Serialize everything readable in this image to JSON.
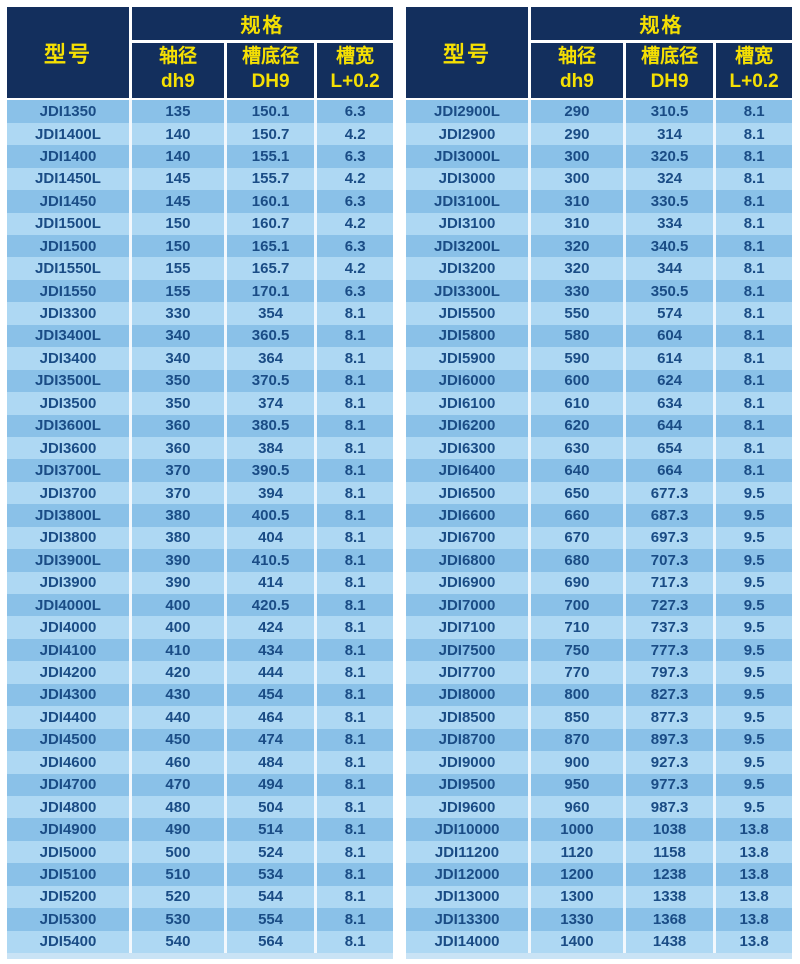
{
  "colors": {
    "header_bg": "#132f5d",
    "header_text": "#f5e003",
    "row_odd": "#8ac1e8",
    "row_even": "#aed8f3",
    "cell_text": "#1a4c85",
    "separator": "#ffffff",
    "footer_strip": "#c9e3f5"
  },
  "tables": [
    {
      "header": {
        "model_label": "型号",
        "spec_label": "规格",
        "columns": [
          {
            "cn": "轴径",
            "code": "dh9"
          },
          {
            "cn": "槽底径",
            "code": "DH9"
          },
          {
            "cn": "槽宽",
            "code": "L+0.2"
          }
        ]
      },
      "rows": [
        [
          "JDI1350",
          "135",
          "150.1",
          "6.3"
        ],
        [
          "JDI1400L",
          "140",
          "150.7",
          "4.2"
        ],
        [
          "JDI1400",
          "140",
          "155.1",
          "6.3"
        ],
        [
          "JDI1450L",
          "145",
          "155.7",
          "4.2"
        ],
        [
          "JDI1450",
          "145",
          "160.1",
          "6.3"
        ],
        [
          "JDI1500L",
          "150",
          "160.7",
          "4.2"
        ],
        [
          "JDI1500",
          "150",
          "165.1",
          "6.3"
        ],
        [
          "JDI1550L",
          "155",
          "165.7",
          "4.2"
        ],
        [
          "JDI1550",
          "155",
          "170.1",
          "6.3"
        ],
        [
          "JDI3300",
          "330",
          "354",
          "8.1"
        ],
        [
          "JDI3400L",
          "340",
          "360.5",
          "8.1"
        ],
        [
          "JDI3400",
          "340",
          "364",
          "8.1"
        ],
        [
          "JDI3500L",
          "350",
          "370.5",
          "8.1"
        ],
        [
          "JDI3500",
          "350",
          "374",
          "8.1"
        ],
        [
          "JDI3600L",
          "360",
          "380.5",
          "8.1"
        ],
        [
          "JDI3600",
          "360",
          "384",
          "8.1"
        ],
        [
          "JDI3700L",
          "370",
          "390.5",
          "8.1"
        ],
        [
          "JDI3700",
          "370",
          "394",
          "8.1"
        ],
        [
          "JDI3800L",
          "380",
          "400.5",
          "8.1"
        ],
        [
          "JDI3800",
          "380",
          "404",
          "8.1"
        ],
        [
          "JDI3900L",
          "390",
          "410.5",
          "8.1"
        ],
        [
          "JDI3900",
          "390",
          "414",
          "8.1"
        ],
        [
          "JDI4000L",
          "400",
          "420.5",
          "8.1"
        ],
        [
          "JDI4000",
          "400",
          "424",
          "8.1"
        ],
        [
          "JDI4100",
          "410",
          "434",
          "8.1"
        ],
        [
          "JDI4200",
          "420",
          "444",
          "8.1"
        ],
        [
          "JDI4300",
          "430",
          "454",
          "8.1"
        ],
        [
          "JDI4400",
          "440",
          "464",
          "8.1"
        ],
        [
          "JDI4500",
          "450",
          "474",
          "8.1"
        ],
        [
          "JDI4600",
          "460",
          "484",
          "8.1"
        ],
        [
          "JDI4700",
          "470",
          "494",
          "8.1"
        ],
        [
          "JDI4800",
          "480",
          "504",
          "8.1"
        ],
        [
          "JDI4900",
          "490",
          "514",
          "8.1"
        ],
        [
          "JDI5000",
          "500",
          "524",
          "8.1"
        ],
        [
          "JDI5100",
          "510",
          "534",
          "8.1"
        ],
        [
          "JDI5200",
          "520",
          "544",
          "8.1"
        ],
        [
          "JDI5300",
          "530",
          "554",
          "8.1"
        ],
        [
          "JDI5400",
          "540",
          "564",
          "8.1"
        ]
      ]
    },
    {
      "header": {
        "model_label": "型号",
        "spec_label": "规格",
        "columns": [
          {
            "cn": "轴径",
            "code": "dh9"
          },
          {
            "cn": "槽底径",
            "code": "DH9"
          },
          {
            "cn": "槽宽",
            "code": "L+0.2"
          }
        ]
      },
      "rows": [
        [
          "JDI2900L",
          "290",
          "310.5",
          "8.1"
        ],
        [
          "JDI2900",
          "290",
          "314",
          "8.1"
        ],
        [
          "JDI3000L",
          "300",
          "320.5",
          "8.1"
        ],
        [
          "JDI3000",
          "300",
          "324",
          "8.1"
        ],
        [
          "JDI3100L",
          "310",
          "330.5",
          "8.1"
        ],
        [
          "JDI3100",
          "310",
          "334",
          "8.1"
        ],
        [
          "JDI3200L",
          "320",
          "340.5",
          "8.1"
        ],
        [
          "JDI3200",
          "320",
          "344",
          "8.1"
        ],
        [
          "JDI3300L",
          "330",
          "350.5",
          "8.1"
        ],
        [
          "JDI5500",
          "550",
          "574",
          "8.1"
        ],
        [
          "JDI5800",
          "580",
          "604",
          "8.1"
        ],
        [
          "JDI5900",
          "590",
          "614",
          "8.1"
        ],
        [
          "JDI6000",
          "600",
          "624",
          "8.1"
        ],
        [
          "JDI6100",
          "610",
          "634",
          "8.1"
        ],
        [
          "JDI6200",
          "620",
          "644",
          "8.1"
        ],
        [
          "JDI6300",
          "630",
          "654",
          "8.1"
        ],
        [
          "JDI6400",
          "640",
          "664",
          "8.1"
        ],
        [
          "JDI6500",
          "650",
          "677.3",
          "9.5"
        ],
        [
          "JDI6600",
          "660",
          "687.3",
          "9.5"
        ],
        [
          "JDI6700",
          "670",
          "697.3",
          "9.5"
        ],
        [
          "JDI6800",
          "680",
          "707.3",
          "9.5"
        ],
        [
          "JDI6900",
          "690",
          "717.3",
          "9.5"
        ],
        [
          "JDI7000",
          "700",
          "727.3",
          "9.5"
        ],
        [
          "JDI7100",
          "710",
          "737.3",
          "9.5"
        ],
        [
          "JDI7500",
          "750",
          "777.3",
          "9.5"
        ],
        [
          "JDI7700",
          "770",
          "797.3",
          "9.5"
        ],
        [
          "JDI8000",
          "800",
          "827.3",
          "9.5"
        ],
        [
          "JDI8500",
          "850",
          "877.3",
          "9.5"
        ],
        [
          "JDI8700",
          "870",
          "897.3",
          "9.5"
        ],
        [
          "JDI9000",
          "900",
          "927.3",
          "9.5"
        ],
        [
          "JDI9500",
          "950",
          "977.3",
          "9.5"
        ],
        [
          "JDI9600",
          "960",
          "987.3",
          "9.5"
        ],
        [
          "JDI10000",
          "1000",
          "1038",
          "13.8"
        ],
        [
          "JDI11200",
          "1120",
          "1158",
          "13.8"
        ],
        [
          "JDI12000",
          "1200",
          "1238",
          "13.8"
        ],
        [
          "JDI13000",
          "1300",
          "1338",
          "13.8"
        ],
        [
          "JDI13300",
          "1330",
          "1368",
          "13.8"
        ],
        [
          "JDI14000",
          "1400",
          "1438",
          "13.8"
        ]
      ]
    }
  ]
}
